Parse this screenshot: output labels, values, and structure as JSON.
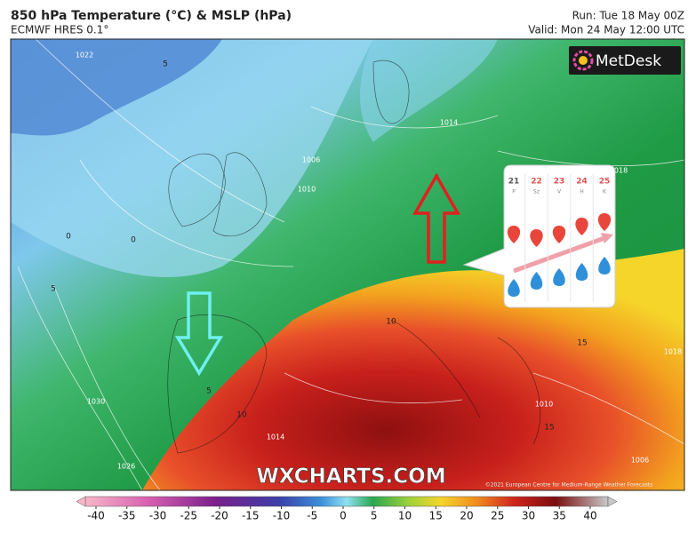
{
  "header": {
    "title": "850 hPa Temperature (°C) & MSLP (hPa)",
    "subtitle": "ECMWF HRES 0.1°",
    "run": "Run: Tue 18 May 00Z",
    "valid": "Valid: Mon 24 May 12:00 UTC"
  },
  "logo": "MetDesk",
  "watermark": "WXCHARTS.COM",
  "copyright": "©2021 European Centre for Medium-Range Weather Forecasts",
  "isobar_labels": [
    1022,
    1014,
    1006,
    1010,
    1018,
    1018,
    1030,
    1026,
    1014,
    1010,
    1006
  ],
  "temperature_labels": [
    5,
    0,
    0,
    5,
    5,
    10,
    15,
    15,
    10
  ],
  "callout": {
    "days": [
      "21",
      "22",
      "23",
      "24",
      "25"
    ],
    "weekdays": [
      "P",
      "Sz",
      "V",
      "H",
      "K"
    ]
  },
  "colorbar": {
    "ticks": [
      -40,
      -35,
      -30,
      -25,
      -20,
      -15,
      -10,
      -5,
      0,
      5,
      10,
      15,
      20,
      25,
      30,
      35,
      40
    ]
  }
}
